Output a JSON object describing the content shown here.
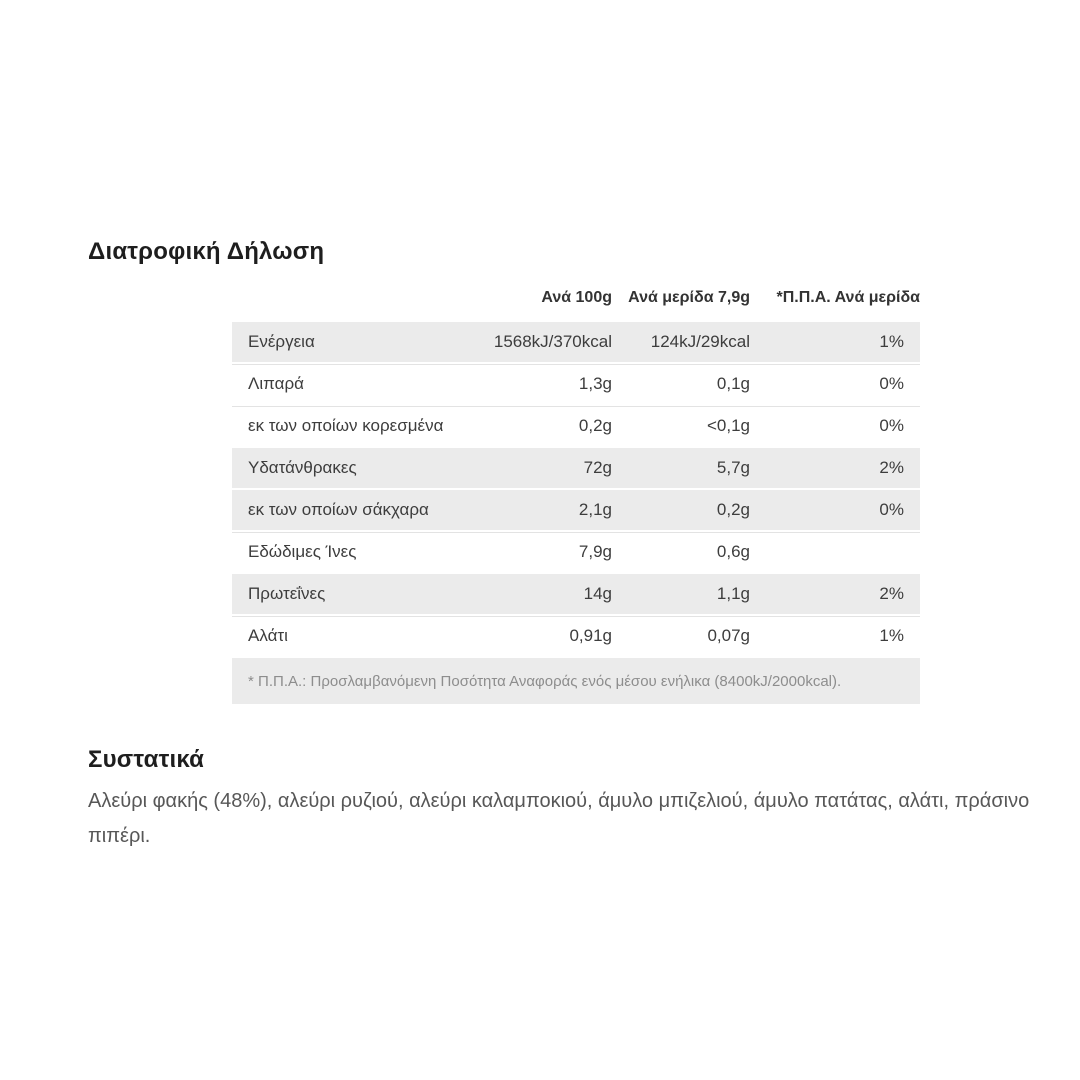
{
  "page": {
    "nutrition_title": "Διατροφική Δήλωση",
    "ingredients_title": "Συστατικά",
    "ingredients_text": "Αλεύρι φακής (48%), αλεύρι ρυζιού, αλεύρι καλαμποκιού, άμυλο μπιζελιού, άμυλο πατάτας, αλάτι, πράσινο πιπέρι."
  },
  "nutrition_table": {
    "columns": [
      "Ανά 100g",
      "Ανά μερίδα 7,9g",
      "*Π.Π.Α. Ανά μερίδα"
    ],
    "rows": [
      {
        "label": "Ενέργεια",
        "per_100g": "1568kJ/370kcal",
        "per_serving": "124kJ/29kcal",
        "ri_per_serving": "1%"
      },
      {
        "label": "Λιπαρά",
        "per_100g": "1,3g",
        "per_serving": "0,1g",
        "ri_per_serving": "0%"
      },
      {
        "label": "εκ των οποίων κορεσμένα",
        "per_100g": "0,2g",
        "per_serving": "<0,1g",
        "ri_per_serving": "0%"
      },
      {
        "label": "Υδατάνθρακες",
        "per_100g": "72g",
        "per_serving": "5,7g",
        "ri_per_serving": "2%"
      },
      {
        "label": "εκ των οποίων σάκχαρα",
        "per_100g": "2,1g",
        "per_serving": "0,2g",
        "ri_per_serving": "0%"
      },
      {
        "label": "Εδώδιμες Ίνες",
        "per_100g": "7,9g",
        "per_serving": "0,6g",
        "ri_per_serving": ""
      },
      {
        "label": "Πρωτεΐνες",
        "per_100g": "14g",
        "per_serving": "1,1g",
        "ri_per_serving": "2%"
      },
      {
        "label": "Αλάτι",
        "per_100g": "0,91g",
        "per_serving": "0,07g",
        "ri_per_serving": "1%"
      }
    ],
    "footnote": "* Π.Π.Α.: Προσλαμβανόμενη Ποσότητα Αναφοράς ενός μέσου ενήλικα (8400kJ/2000kcal)."
  },
  "colors": {
    "row_shade": "#ebebeb",
    "heading_text": "#1e1e1e",
    "body_text": "#3d3d3d",
    "footnote_text": "#8d8d8d"
  }
}
